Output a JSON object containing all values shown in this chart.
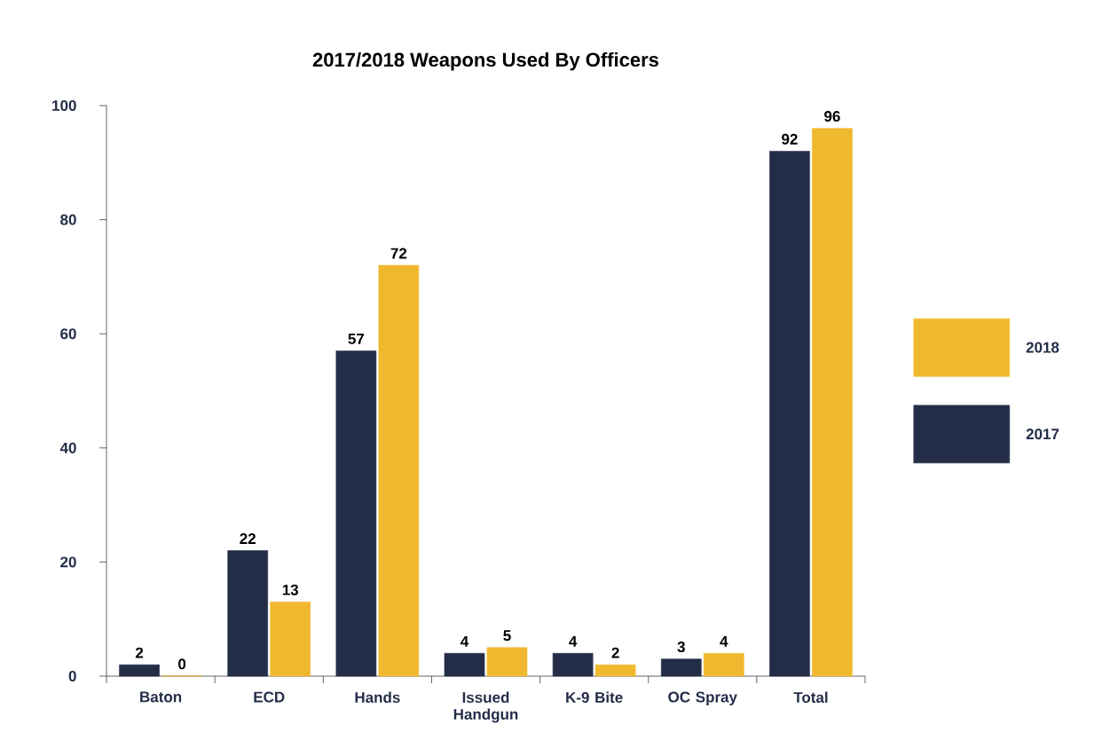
{
  "chart_data": {
    "type": "bar",
    "title": "2017/2018 Weapons Used By Officers",
    "categories": [
      "Baton",
      "ECD",
      "Hands",
      "Issued Handgun",
      "K-9 Bite",
      "OC Spray",
      "Total"
    ],
    "series": [
      {
        "name": "2017",
        "color": "#232d48",
        "values": [
          2,
          22,
          57,
          4,
          4,
          3,
          92
        ]
      },
      {
        "name": "2018",
        "color": "#f0b82e",
        "values": [
          0,
          13,
          72,
          5,
          2,
          4,
          96
        ]
      }
    ],
    "ylim": [
      0,
      100
    ],
    "yticks": [
      0,
      20,
      40,
      60,
      80,
      100
    ],
    "data_labels": true,
    "legend": "right"
  }
}
